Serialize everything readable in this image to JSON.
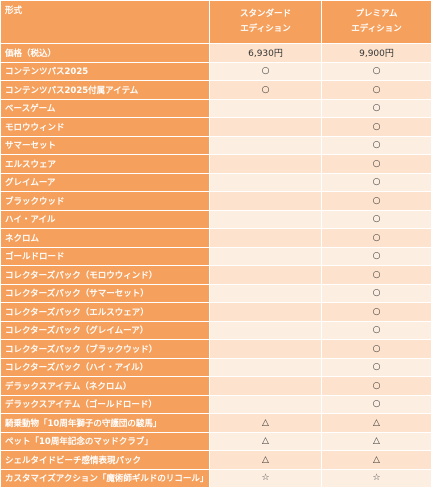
{
  "header": {
    "format": "形式",
    "standard_line1": "スタンダード",
    "standard_line2": "エディション",
    "premium_line1": "プレミアム",
    "premium_line2": "エディション"
  },
  "rows": [
    {
      "label": "価格（税込）",
      "standard": "6,930円",
      "premium": "9,900円"
    },
    {
      "label": "コンテンツパス2025",
      "standard": "○",
      "premium": "○"
    },
    {
      "label": "コンテンツパス2025付属アイテム",
      "standard": "○",
      "premium": "○"
    },
    {
      "label": "ベースゲーム",
      "standard": "",
      "premium": "○"
    },
    {
      "label": "モロウウィンド",
      "standard": "",
      "premium": "○"
    },
    {
      "label": "サマーセット",
      "standard": "",
      "premium": "○"
    },
    {
      "label": "エルスウェア",
      "standard": "",
      "premium": "○"
    },
    {
      "label": "グレイムーア",
      "standard": "",
      "premium": "○"
    },
    {
      "label": "ブラックウッド",
      "standard": "",
      "premium": "○"
    },
    {
      "label": "ハイ・アイル",
      "standard": "",
      "premium": "○"
    },
    {
      "label": "ネクロム",
      "standard": "",
      "premium": "○"
    },
    {
      "label": "ゴールドロード",
      "standard": "",
      "premium": "○"
    },
    {
      "label": "コレクターズパック（モロウウィンド）",
      "standard": "",
      "premium": "○"
    },
    {
      "label": "コレクターズパック（サマーセット）",
      "standard": "",
      "premium": "○"
    },
    {
      "label": "コレクターズパック（エルスウェア）",
      "standard": "",
      "premium": "○"
    },
    {
      "label": "コレクターズパック（グレイムーア）",
      "standard": "",
      "premium": "○"
    },
    {
      "label": "コレクターズパック（ブラックウッド）",
      "standard": "",
      "premium": "○"
    },
    {
      "label": "コレクターズパック（ハイ・アイル）",
      "standard": "",
      "premium": "○"
    },
    {
      "label": "デラックスアイテム（ネクロム）",
      "standard": "",
      "premium": "○"
    },
    {
      "label": "デラックスアイテム（ゴールドロード）",
      "standard": "",
      "premium": "○"
    },
    {
      "label": "騎乗動物「10周年獅子の守護団の駿馬」",
      "standard": "△",
      "premium": "△"
    },
    {
      "label": "ペット「10周年記念のマッドクラブ」",
      "standard": "△",
      "premium": "△"
    },
    {
      "label": "シェルタイドビーチ感情表現パック",
      "standard": "△",
      "premium": "△"
    },
    {
      "label": "カスタマイズアクション「魔術師ギルドのリコール」",
      "standard": "☆",
      "premium": "☆"
    }
  ],
  "colors": {
    "header_bg": "#f5a05c",
    "row_odd_bg": "#fde3cd",
    "row_even_bg": "#fcefe2"
  }
}
